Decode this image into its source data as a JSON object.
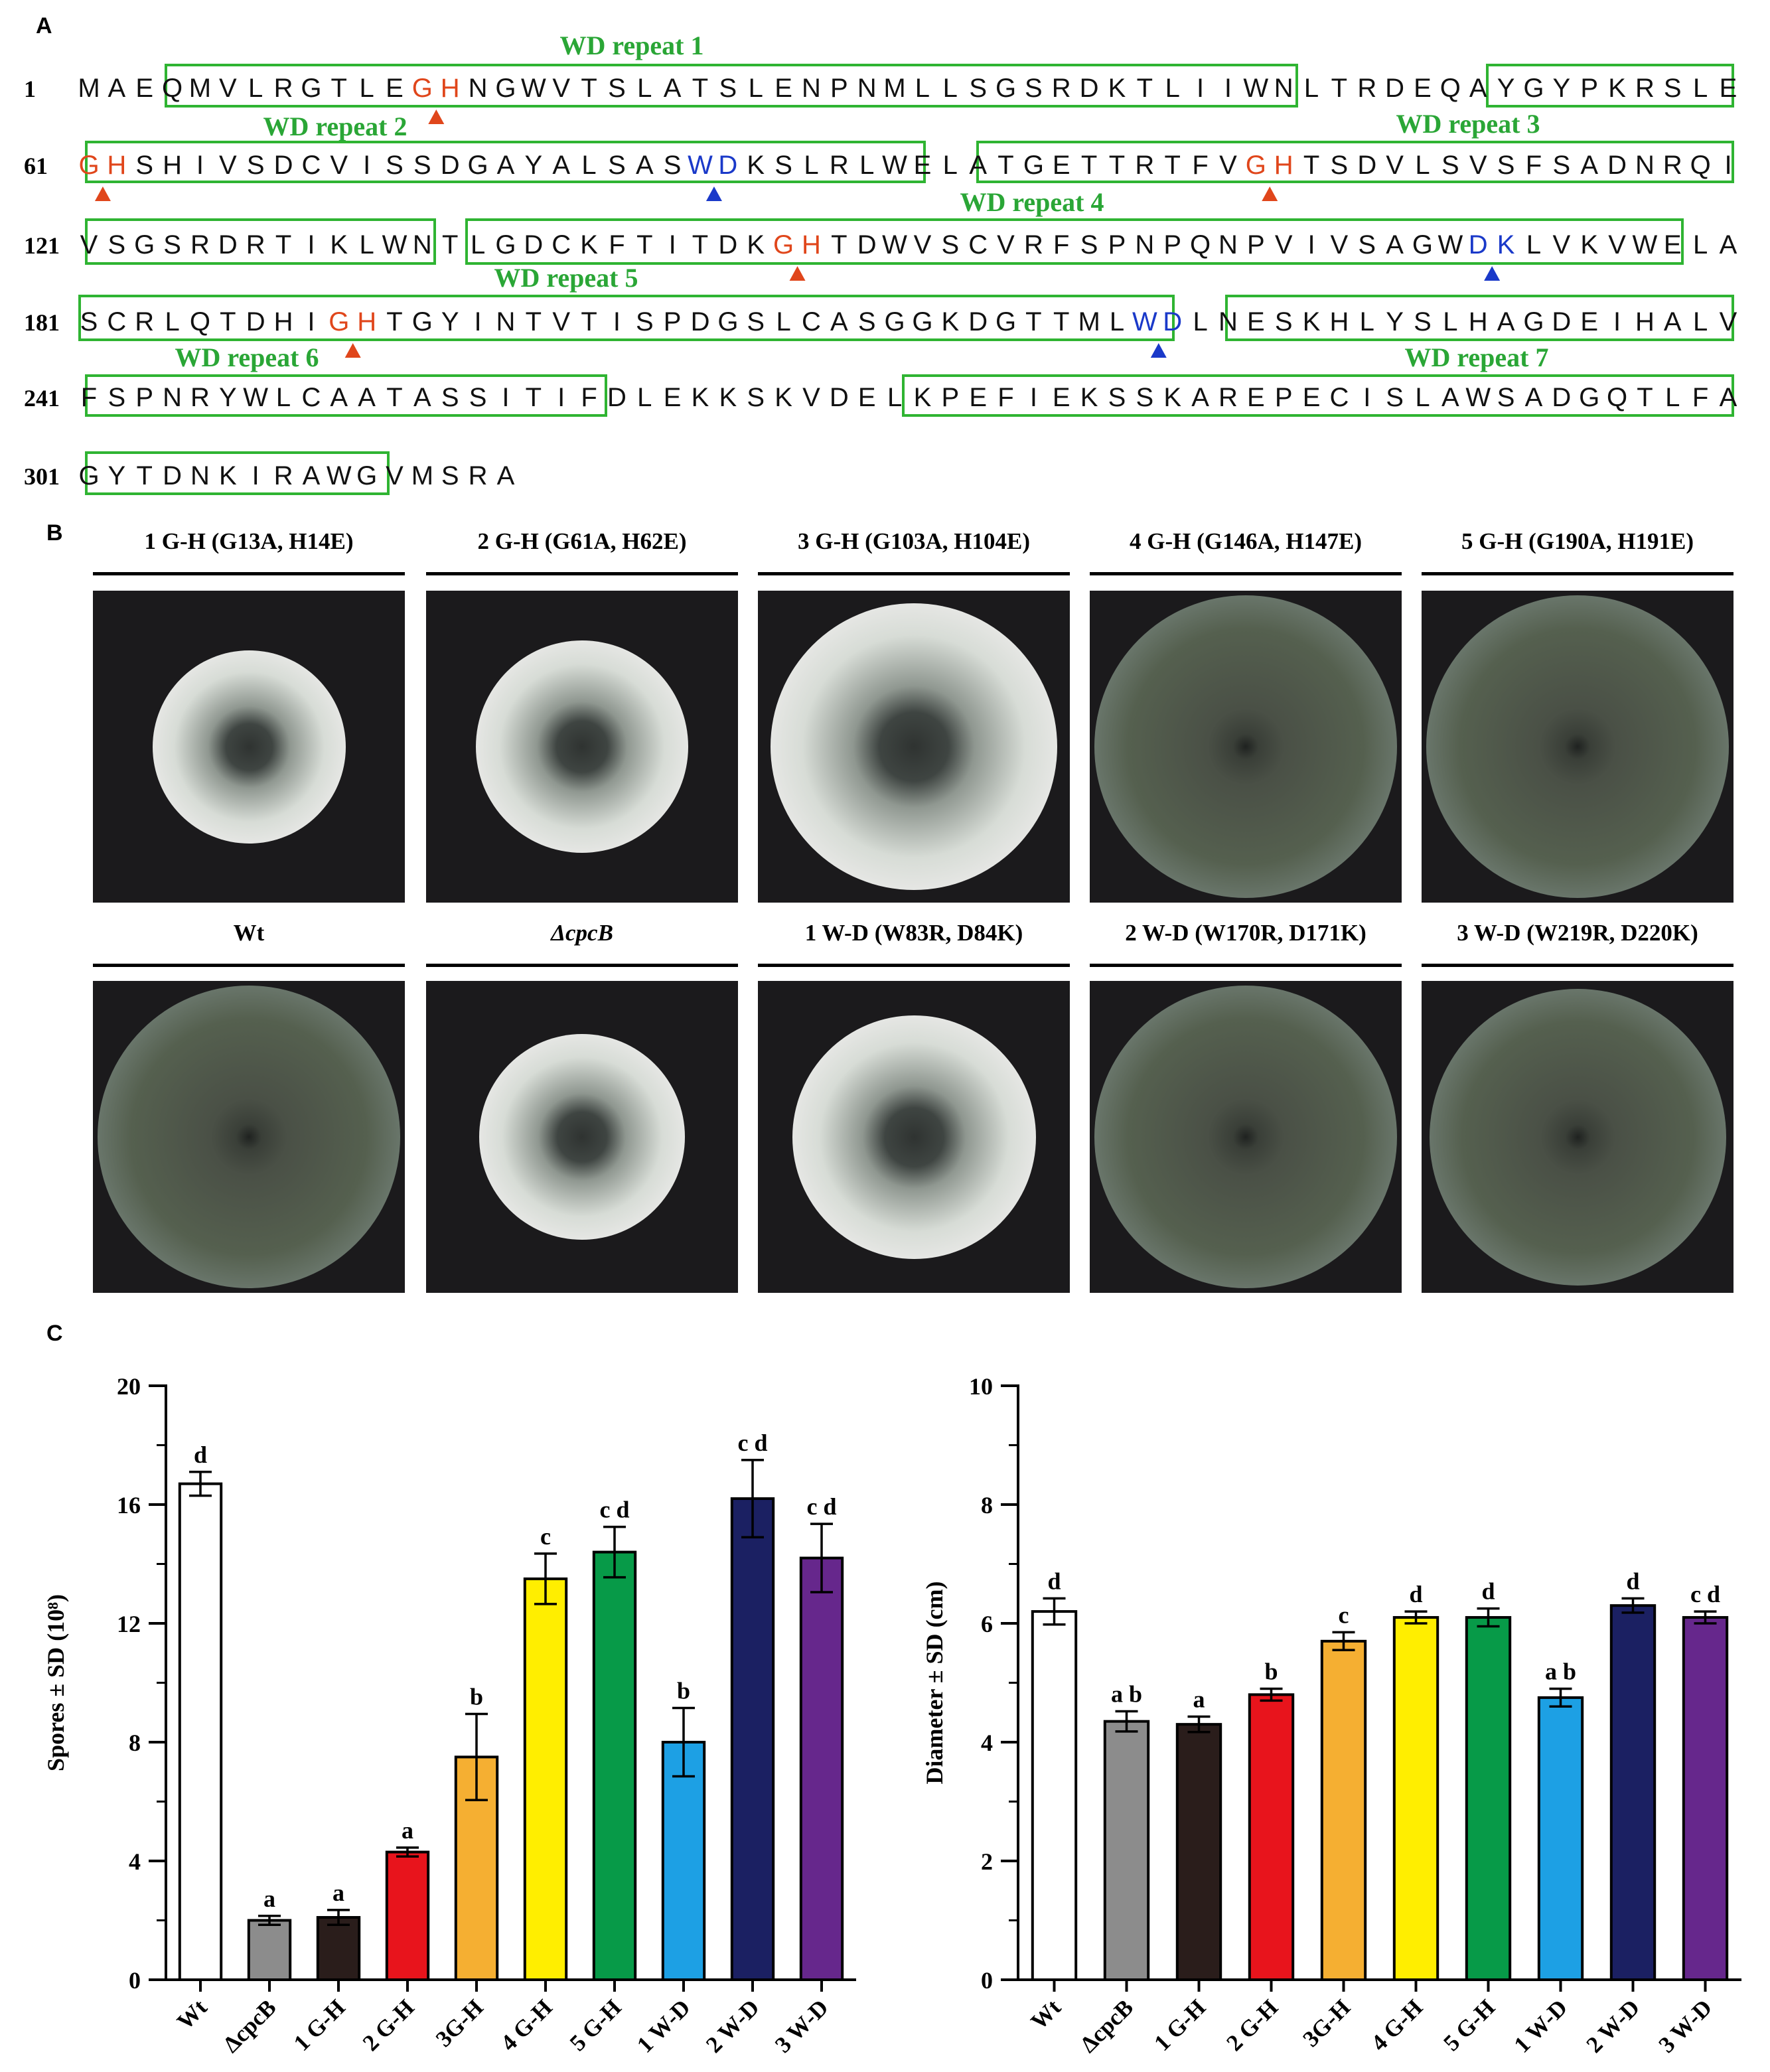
{
  "panels": {
    "a": "A",
    "b": "B",
    "c": "C"
  },
  "sequence": {
    "rows": [
      {
        "num": "1",
        "text": "MAEQMVLRGTLEGHNGWVTSLATSLENPNMLLSGSRDKTLIIWNLTRDEQAYGYPKRSLE"
      },
      {
        "num": "61",
        "text": "GHSHIVSDCVISSDGAYALSASWDKSLRLWELATGETTRTFVGHTSDVLSVSFSADNRQI"
      },
      {
        "num": "121",
        "text": "VSGSRDRTIKLWNTLGDCKFTITDKGHTDWVSCVRFSPNPQNPVIVSAGWDKLVKVWELA"
      },
      {
        "num": "181",
        "text": "SCRLQTDHIGHTGYINTVTISPDGSLCASGGKDGTTMLWDLNESKHLYSLHAGDEIHALV"
      },
      {
        "num": "241",
        "text": "FSPNRYWLCAATASSITIFDLEKKSKVDELKPEFIEKSSKAREPECISLAWSADGQTLFA"
      },
      {
        "num": "301",
        "text": "GYTDNKIRAWGVMSRA"
      }
    ],
    "repeats": [
      "WD repeat 1",
      "WD repeat 2",
      "WD repeat 3",
      "WD repeat 4",
      "WD repeat 5",
      "WD repeat 6",
      "WD repeat 7"
    ],
    "colors": {
      "gh": "#e0461b",
      "wd": "#1a39c9",
      "box": "#2fb432",
      "label": "#2aa636",
      "text": "#111111"
    }
  },
  "plates": {
    "row1": [
      "1 G-H  (G13A, H14E)",
      "2 G-H (G61A, H62E)",
      "3 G-H (G103A, H104E)",
      "4 G-H (G146A, H147E)",
      "5 G-H (G190A, H191E)"
    ],
    "row2": [
      "Wt",
      "ΔcpcB",
      "1 W-D (W83R, D84K)",
      "2 W-D (W170R, D171K)",
      "3 W-D (W219R, D220K)"
    ]
  },
  "chart_data": [
    {
      "type": "bar",
      "categories": [
        "Wt",
        "ΔcpcB",
        "1 G-H",
        "2 G-H",
        "3G-H",
        "4 G-H",
        "5 G-H",
        "1 W-D",
        "2 W-D",
        "3 W-D"
      ],
      "values": [
        16.7,
        2.0,
        2.1,
        4.3,
        7.5,
        13.5,
        14.4,
        8.0,
        16.2,
        14.2
      ],
      "errors": [
        0.4,
        0.15,
        0.25,
        0.15,
        1.45,
        0.85,
        0.85,
        1.15,
        1.3,
        1.15
      ],
      "letters": [
        "d",
        "a",
        "a",
        "a",
        "b",
        "c",
        "c d",
        "b",
        "c d",
        "c d"
      ],
      "colors": [
        "#ffffff",
        "#8c8c8c",
        "#2a1d1b",
        "#e8141c",
        "#f5af32",
        "#ffee00",
        "#079a48",
        "#1da0e4",
        "#1b2062",
        "#66278c"
      ],
      "ylabel": "Spores ± SD (10⁸)",
      "ylim": [
        0,
        20
      ],
      "yticks": [
        "0",
        "4",
        "8",
        "12",
        "16",
        "20"
      ]
    },
    {
      "type": "bar",
      "categories": [
        "Wt",
        "ΔcpcB",
        "1 G-H",
        "2 G-H",
        "3G-H",
        "4 G-H",
        "5 G-H",
        "1 W-D",
        "2 W-D",
        "3 W-D"
      ],
      "values": [
        6.2,
        4.35,
        4.3,
        4.8,
        5.7,
        6.1,
        6.1,
        4.75,
        6.3,
        6.1
      ],
      "errors": [
        0.22,
        0.17,
        0.13,
        0.1,
        0.15,
        0.1,
        0.15,
        0.15,
        0.12,
        0.1
      ],
      "letters": [
        "d",
        "a b",
        "a",
        "b",
        "c",
        "d",
        "d",
        "a b",
        "d",
        "c d"
      ],
      "colors": [
        "#ffffff",
        "#8c8c8c",
        "#2a1d1b",
        "#e8141c",
        "#f5af32",
        "#ffee00",
        "#079a48",
        "#1da0e4",
        "#1b2062",
        "#66278c"
      ],
      "ylabel": "Diameter ± SD (cm)",
      "ylim": [
        0,
        10
      ],
      "yticks": [
        "0",
        "2",
        "4",
        "6",
        "8",
        "10"
      ]
    }
  ]
}
